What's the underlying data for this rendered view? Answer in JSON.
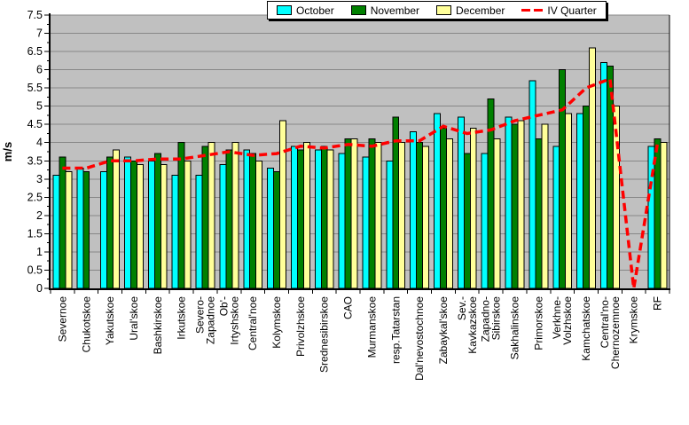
{
  "chart_data": {
    "type": "bar",
    "title": "",
    "xlabel": "",
    "ylabel": "m/s",
    "ylim": [
      0,
      7.5
    ],
    "ytick_step": 0.5,
    "grid": true,
    "legend_position": "top",
    "plot_bg_color": "#C0C0C0",
    "grid_color": "#878787",
    "axis_color": "#000000",
    "categories": [
      "Severnoe",
      "Chukotskoe",
      "Yakutskoe",
      "Ural'skoe",
      "Bashkirskoe",
      "Irkutskoe",
      "Severo-Zapadnoe",
      "Ob'-Irtyshskoe",
      "Central'noe",
      "Kolymskoe",
      "Privolzhskoe",
      "Srednesibirskoe",
      "CAO",
      "Murmanskoe",
      "resp.Tatarstan",
      "Dal'nevostochnoe",
      "Zabaykal'skoe",
      "Sev.-Kavkazskoe",
      "Zapadno-Sibirskoe",
      "Sakhalinskoe",
      "Primorskoe",
      "Verkhne-Volzhskoe",
      "Kamchatskoe",
      "Central'no-Chernozemnoe",
      "Krymskoe",
      "RF"
    ],
    "category_label_lines": [
      [
        "Severnoe"
      ],
      [
        "Chukotskoe"
      ],
      [
        "Yakutskoe"
      ],
      [
        "Ural'skoe"
      ],
      [
        "Bashkirskoe"
      ],
      [
        "Irkutskoe"
      ],
      [
        "Severo-",
        "Zapadnoe"
      ],
      [
        "Ob'-",
        "Irtyshskoe"
      ],
      [
        "Central'noe"
      ],
      [
        "Kolymskoe"
      ],
      [
        "Privolzhskoe"
      ],
      [
        "Srednesibirskoe"
      ],
      [
        "CAO"
      ],
      [
        "Murmanskoe"
      ],
      [
        "resp.Tatarstan"
      ],
      [
        "Dal'nevostochnoe"
      ],
      [
        "Zabaykal'skoe"
      ],
      [
        "Sev.-",
        "Kavkazskoe"
      ],
      [
        "Zapadno-",
        "Sibirskoe"
      ],
      [
        "Sakhalinskoe"
      ],
      [
        "Primorskoe"
      ],
      [
        "Verkhne-",
        "Volzhskoe"
      ],
      [
        "Kamchatskoe"
      ],
      [
        "Central'no-",
        "Chernozemnoe"
      ],
      [
        "Krymskoe"
      ],
      [
        "RF"
      ]
    ],
    "series": [
      {
        "name": "October",
        "color": "#00FFFF",
        "values": [
          3.1,
          3.3,
          3.2,
          3.6,
          3.5,
          3.1,
          3.1,
          3.4,
          3.8,
          3.3,
          3.9,
          3.8,
          3.7,
          3.6,
          3.5,
          4.3,
          4.8,
          4.7,
          3.7,
          4.7,
          5.7,
          3.9,
          4.8,
          6.2,
          null,
          3.9
        ]
      },
      {
        "name": "November",
        "color": "#008000",
        "values": [
          3.6,
          3.2,
          3.6,
          3.5,
          3.7,
          4.0,
          3.9,
          3.8,
          3.7,
          3.2,
          3.8,
          3.9,
          4.1,
          4.1,
          4.7,
          4.0,
          4.4,
          3.7,
          5.2,
          4.5,
          4.1,
          6.0,
          5.0,
          6.1,
          null,
          4.1
        ]
      },
      {
        "name": "December",
        "color": "#FFFF99",
        "values": [
          3.2,
          null,
          3.8,
          3.4,
          3.4,
          3.5,
          4.0,
          4.0,
          3.5,
          4.6,
          4.0,
          3.8,
          4.1,
          4.0,
          4.0,
          3.9,
          4.1,
          4.4,
          4.1,
          4.6,
          4.5,
          4.8,
          6.6,
          5.0,
          null,
          4.0
        ]
      }
    ],
    "line_series": {
      "name": "IV Quarter",
      "color": "#FF0000",
      "style": "dashed",
      "values": [
        3.3,
        3.3,
        3.5,
        3.5,
        3.55,
        3.55,
        3.65,
        3.75,
        3.65,
        3.7,
        3.9,
        3.85,
        3.95,
        3.9,
        4.05,
        4.05,
        4.45,
        4.25,
        4.35,
        4.6,
        4.75,
        4.9,
        5.5,
        5.75,
        0,
        4.0
      ]
    }
  },
  "legend": {
    "items": [
      {
        "label": "October",
        "type": "box",
        "color": "#00FFFF"
      },
      {
        "label": "November",
        "type": "box",
        "color": "#008000"
      },
      {
        "label": "December",
        "type": "box",
        "color": "#FFFF99"
      },
      {
        "label": "IV Quarter",
        "type": "dash",
        "color": "#FF0000"
      }
    ]
  },
  "axis": {
    "y_title": "m/s",
    "y_tick_labels": [
      "0",
      "0.5",
      "1",
      "1.5",
      "2",
      "2.5",
      "3",
      "3.5",
      "4",
      "4.5",
      "5",
      "5.5",
      "6",
      "6.5",
      "7",
      "7.5"
    ]
  }
}
